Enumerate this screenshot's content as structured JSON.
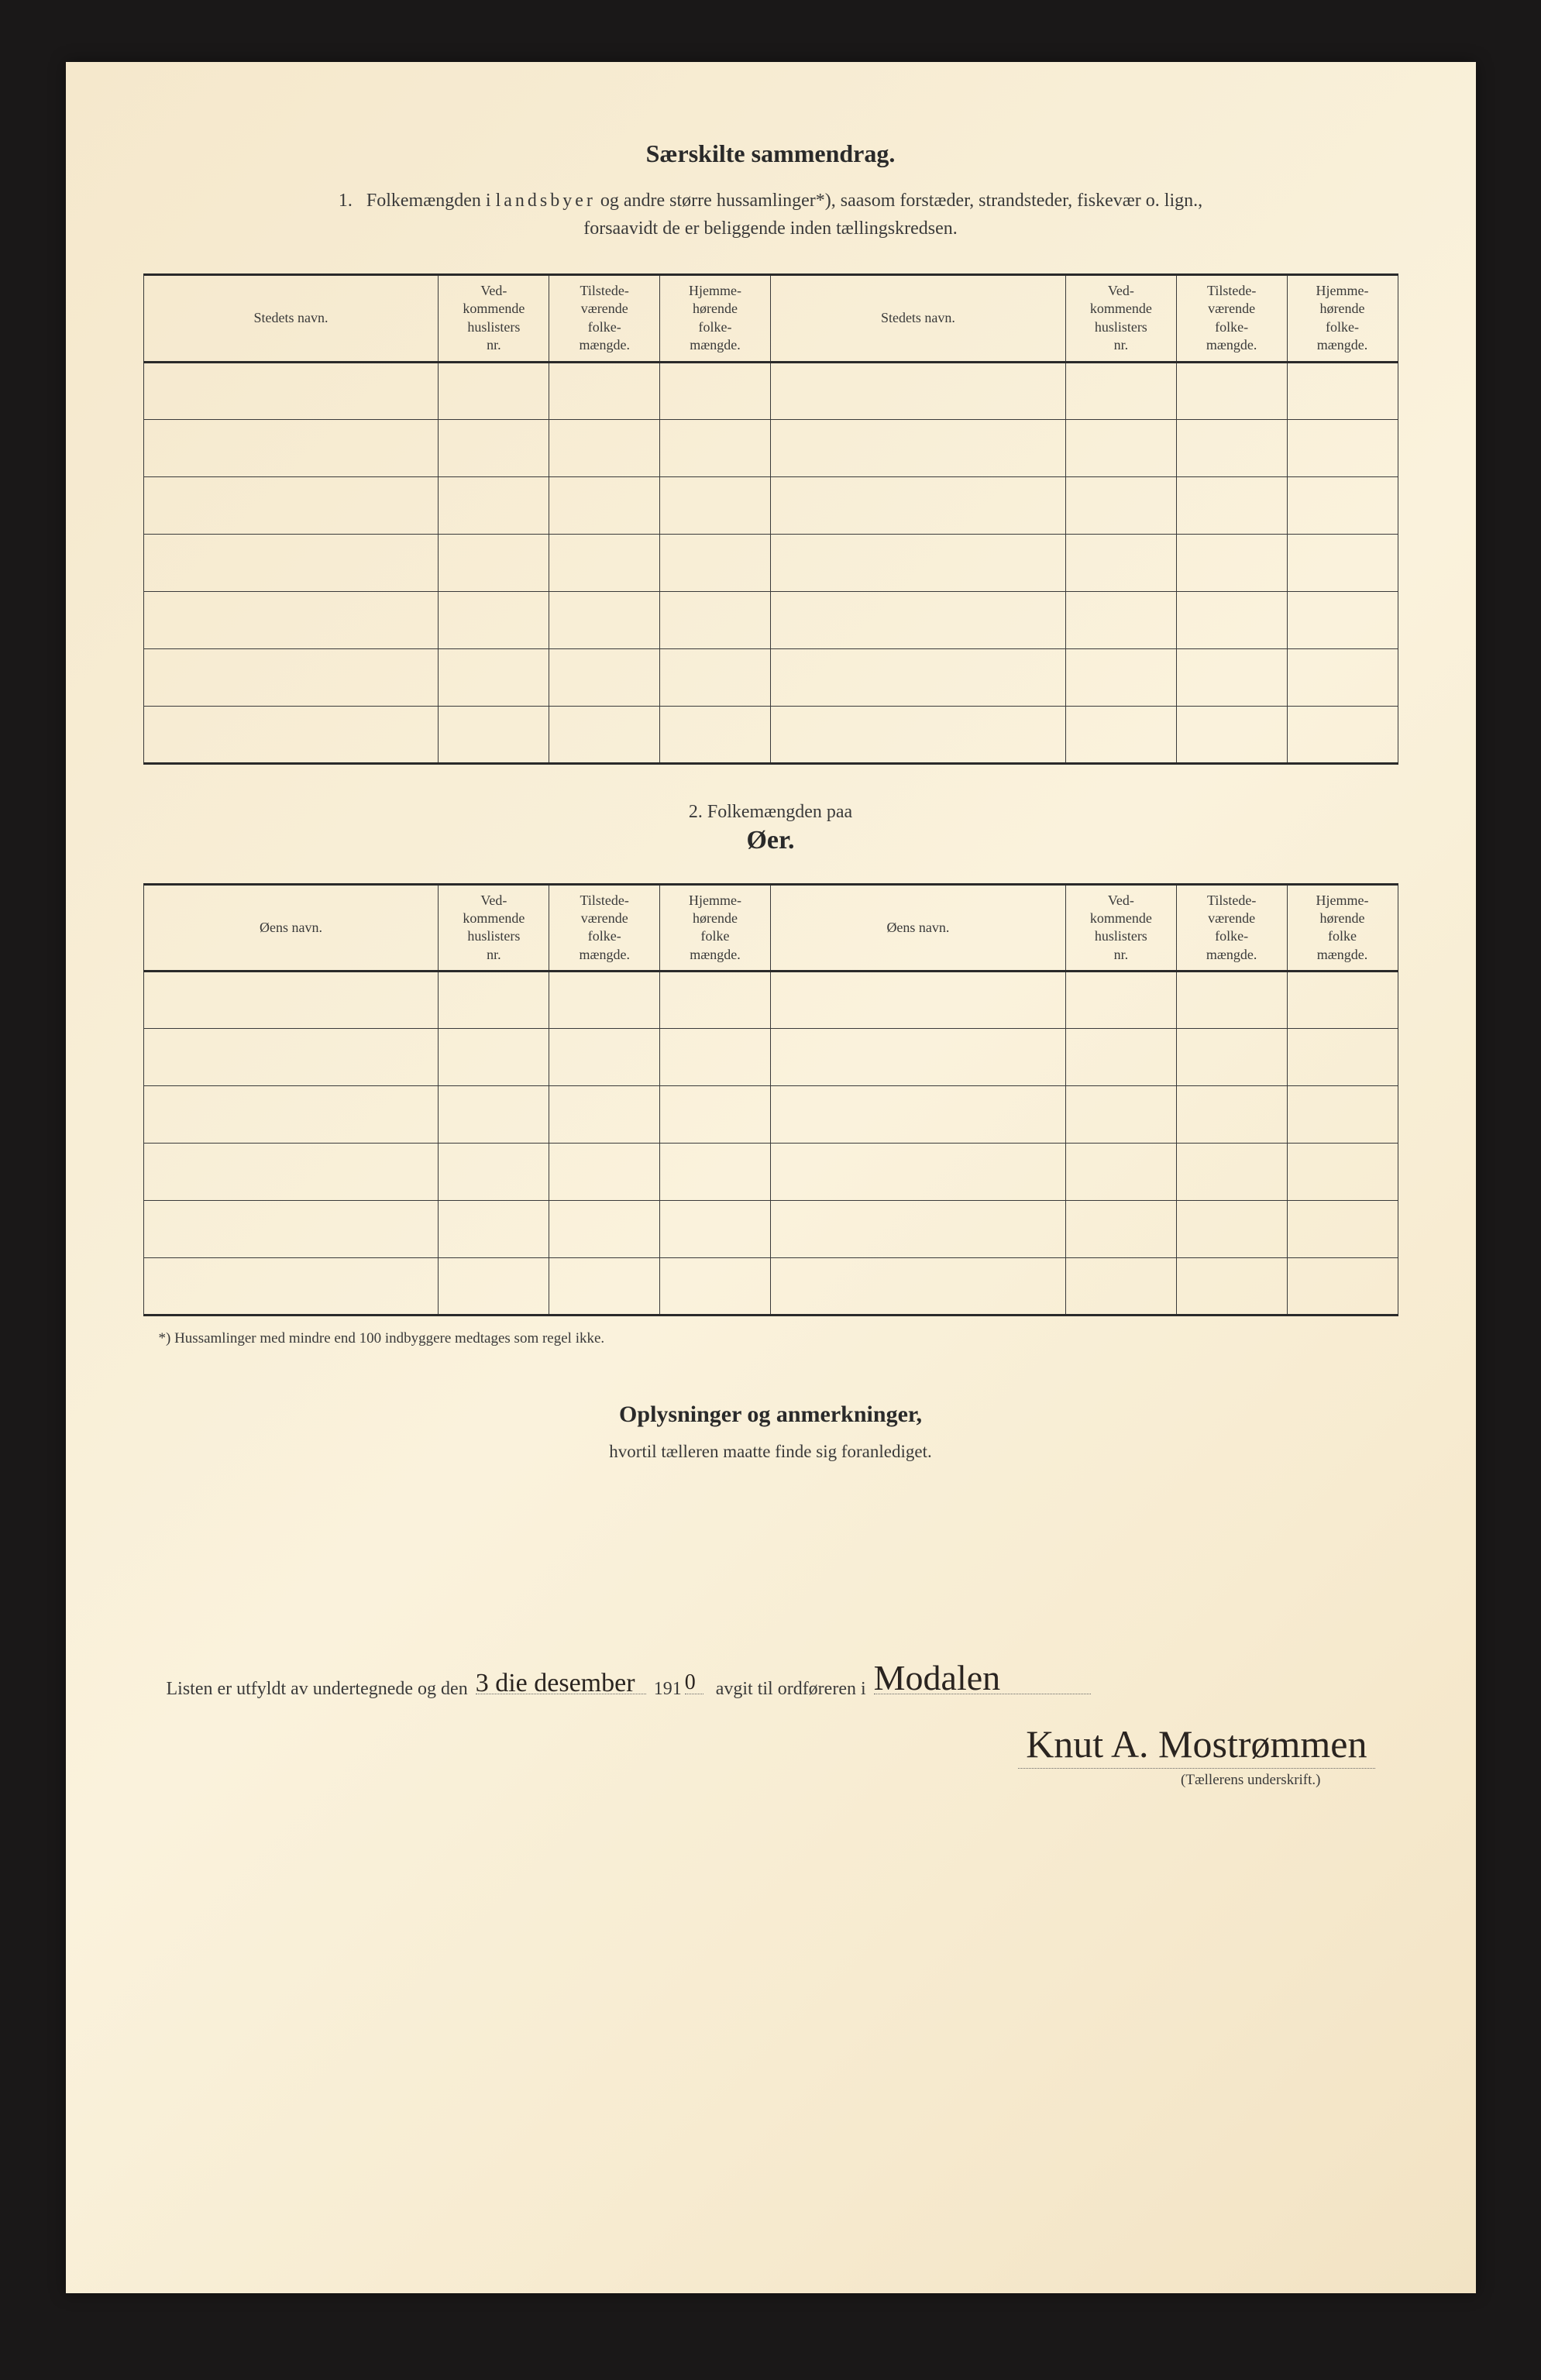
{
  "section1": {
    "title": "Særskilte sammendrag.",
    "intro_num": "1.",
    "intro_a": "Folkemængden i ",
    "intro_spaced": "landsbyer",
    "intro_b": " og andre større hussamlinger*), saasom forstæder, strandsteder, fiskevær o. lign.,",
    "intro_line2": "forsaavidt de er beliggende inden tællingskredsen."
  },
  "table1": {
    "headers": {
      "name": "Stedets navn.",
      "col1": "Ved-\nkommende\nhuslisters\nnr.",
      "col2": "Tilstede-\nværende\nfolke-\nmængde.",
      "col3": "Hjemme-\nhørende\nfolke-\nmængde."
    },
    "rows": 7
  },
  "section2": {
    "intro": "2.   Folkemængden paa",
    "title": "Øer."
  },
  "table2": {
    "headers": {
      "name": "Øens navn.",
      "col1": "Ved-\nkommende\nhuslisters\nnr.",
      "col2": "Tilstede-\nværende\nfolke-\nmængde.",
      "col3": "Hjemme-\nhørende\nfolke\nmængde."
    },
    "rows": 6
  },
  "footnote": "*)  Hussamlinger med mindre end 100 indbyggere medtages som regel ikke.",
  "info": {
    "title": "Oplysninger og anmerkninger,",
    "sub": "hvortil tælleren maatte finde sig foranlediget."
  },
  "sign": {
    "prefix": "Listen er utfyldt av undertegnede og den",
    "date_hand": "3 die desember",
    "year_prefix": "191",
    "year_hand": "0",
    "mid": "avgit til ordføreren i",
    "place_hand": "Modalen",
    "signature": "Knut A. Mostrømmen",
    "caption": "(Tællerens underskrift.)"
  }
}
